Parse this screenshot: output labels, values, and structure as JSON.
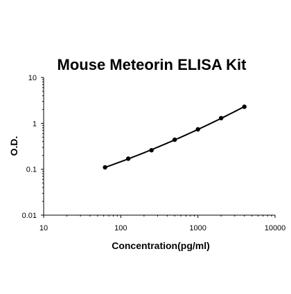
{
  "chart_data": {
    "type": "scatter",
    "title": "Mouse Meteorin ELISA Kit",
    "xlabel": "Concentration(pg/ml)",
    "ylabel": "O.D.",
    "x_scale": "log",
    "y_scale": "log",
    "xlim": [
      10,
      10000
    ],
    "ylim": [
      0.01,
      10
    ],
    "x_ticks": [
      "10",
      "100",
      "1000",
      "10000"
    ],
    "y_ticks": [
      "0.01",
      "0.1",
      "1",
      "10"
    ],
    "grid": false,
    "legend": "none",
    "series": [
      {
        "points": [
          {
            "x": 62.5,
            "y": 0.11
          },
          {
            "x": 125,
            "y": 0.17
          },
          {
            "x": 250,
            "y": 0.26
          },
          {
            "x": 500,
            "y": 0.44
          },
          {
            "x": 1000,
            "y": 0.74
          },
          {
            "x": 2000,
            "y": 1.3
          },
          {
            "x": 4000,
            "y": 2.3
          }
        ],
        "curve": "fitted"
      }
    ],
    "colors": {
      "marker": "#000000",
      "line": "#000000"
    }
  }
}
